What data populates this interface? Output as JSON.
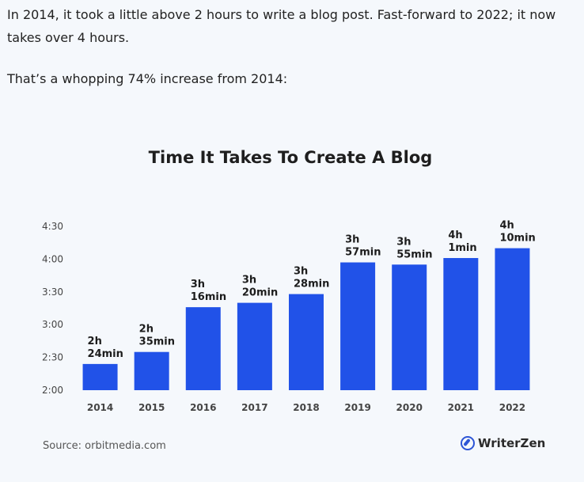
{
  "intro": {
    "paragraph1": "In 2014, it took a little above 2 hours to write a blog post. Fast-forward to 2022; it now takes over 4 hours.",
    "paragraph2": "That’s a whopping 74% increase from 2014:"
  },
  "chart_data": {
    "type": "bar",
    "title": "Time It Takes To Create A Blog",
    "xlabel": "",
    "ylabel": "",
    "categories": [
      "2014",
      "2015",
      "2016",
      "2017",
      "2018",
      "2019",
      "2020",
      "2021",
      "2022"
    ],
    "values_minutes": [
      144,
      155,
      196,
      200,
      208,
      237,
      235,
      241,
      250
    ],
    "data_labels": [
      [
        "2h",
        "24min"
      ],
      [
        "2h",
        "35min"
      ],
      [
        "3h",
        "16min"
      ],
      [
        "3h",
        "20min"
      ],
      [
        "3h",
        "28min"
      ],
      [
        "3h",
        "57min"
      ],
      [
        "3h",
        "55min"
      ],
      [
        "4h",
        "1min"
      ],
      [
        "4h",
        "10min"
      ]
    ],
    "yticks_minutes": [
      120,
      150,
      180,
      210,
      240,
      270
    ],
    "ytick_labels": [
      "2:00",
      "2:30",
      "3:00",
      "3:30",
      "4:00",
      "4:30"
    ],
    "ylim_minutes": [
      120,
      270
    ],
    "grid": false,
    "bar_color": "#2152e8"
  },
  "footer": {
    "source": "Source: orbitmedia.com",
    "brand": "WriterZen",
    "brand_icon": "writerzen-logo-icon",
    "brand_color": "#2d55d6"
  }
}
